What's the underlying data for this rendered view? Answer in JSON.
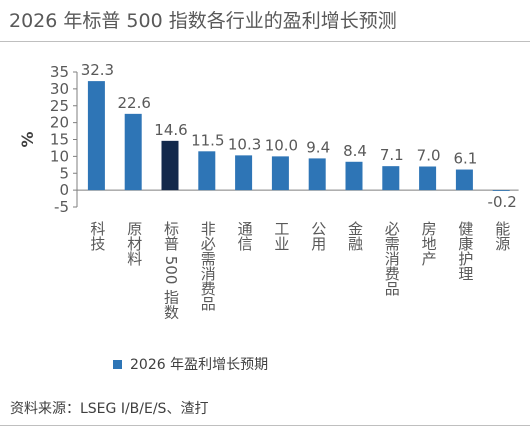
{
  "title": "2026 年标普 500 指数各行业的盈利增长预测",
  "legend_label": "2026 年盈利增长预期",
  "source": "资料来源：LSEG I/B/E/S、渣打",
  "colors": {
    "bar": "#2e75b6",
    "highlight": "#13294b",
    "axis_text": "#595959"
  },
  "chart_data": {
    "type": "bar",
    "categories": [
      "科技",
      "原材料",
      "标普 500 指数",
      "非必需消费品",
      "通信",
      "工业",
      "公用",
      "金融",
      "必需消费品",
      "房地产",
      "健康护理",
      "能源"
    ],
    "series": [
      {
        "name": "2026 年盈利增长预期",
        "values": [
          32.3,
          22.6,
          14.6,
          11.5,
          10.3,
          10.0,
          9.4,
          8.4,
          7.1,
          7.0,
          6.1,
          -0.2
        ]
      }
    ],
    "data_labels": [
      "32.3",
      "22.6",
      "14.6",
      "11.5",
      "10.3",
      "10.0",
      "9.4",
      "8.4",
      "7.1",
      "7.0",
      "6.1",
      "-0.2"
    ],
    "highlight_category": "标普 500 指数",
    "ylabel": "%",
    "ylim": [
      -5,
      35
    ],
    "yticks": [
      -5,
      0,
      5,
      10,
      15,
      20,
      25,
      30,
      35
    ],
    "grid": false,
    "legend_position": "bottom"
  }
}
